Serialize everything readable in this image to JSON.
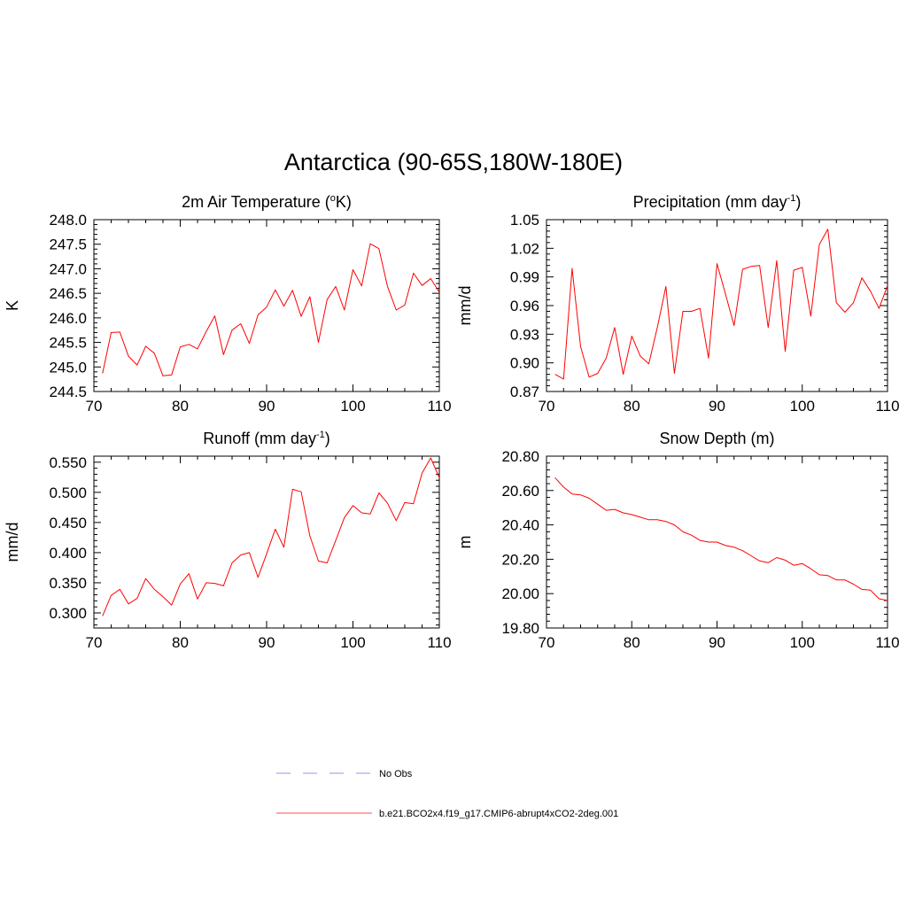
{
  "figure": {
    "title": "Antarctica (90-65S,180W-180E)"
  },
  "chart_data": [
    {
      "type": "line",
      "id": "temp",
      "title": "2m Air Temperature (",
      "title_sup": "o",
      "title_tail": "K)",
      "ylabel": "K",
      "xlabel": "",
      "xlim": [
        70,
        110
      ],
      "ylim": [
        244.5,
        248.0
      ],
      "xticks": [
        "70",
        "80",
        "90",
        "100",
        "110"
      ],
      "yticks": [
        "244.5",
        "245.0",
        "245.5",
        "246.0",
        "246.5",
        "247.0",
        "247.5",
        "248.0"
      ],
      "color": "#ff0000",
      "x": [
        71,
        72,
        73,
        74,
        75,
        76,
        77,
        78,
        79,
        80,
        81,
        82,
        83,
        84,
        85,
        86,
        87,
        88,
        89,
        90,
        91,
        92,
        93,
        94,
        95,
        96,
        97,
        98,
        99,
        100,
        101,
        102,
        103,
        104,
        105,
        106,
        107,
        108,
        109,
        110
      ],
      "values": [
        244.87,
        245.7,
        245.71,
        245.22,
        245.04,
        245.42,
        245.28,
        244.82,
        244.84,
        245.41,
        245.46,
        245.37,
        245.72,
        246.04,
        245.25,
        245.75,
        245.88,
        245.48,
        246.06,
        246.22,
        246.57,
        246.24,
        246.56,
        246.03,
        246.43,
        245.5,
        246.37,
        246.64,
        246.16,
        246.98,
        246.65,
        247.51,
        247.41,
        246.64,
        246.16,
        246.26,
        246.91,
        246.66,
        246.8,
        246.52
      ]
    },
    {
      "type": "line",
      "id": "precip",
      "title": "Precipitation (mm day",
      "title_sup": "-1",
      "title_tail": ")",
      "ylabel": "mm/d",
      "xlabel": "",
      "xlim": [
        70,
        110
      ],
      "ylim": [
        0.87,
        1.05
      ],
      "xticks": [
        "70",
        "80",
        "90",
        "100",
        "110"
      ],
      "yticks": [
        "0.87",
        "0.90",
        "0.93",
        "0.96",
        "0.99",
        "1.02",
        "1.05"
      ],
      "color": "#ff0000",
      "x": [
        71,
        72,
        73,
        74,
        75,
        76,
        77,
        78,
        79,
        80,
        81,
        82,
        83,
        84,
        85,
        86,
        87,
        88,
        89,
        90,
        91,
        92,
        93,
        94,
        95,
        96,
        97,
        98,
        99,
        100,
        101,
        102,
        103,
        104,
        105,
        106,
        107,
        108,
        109,
        110
      ],
      "values": [
        0.888,
        0.883,
        0.999,
        0.917,
        0.885,
        0.889,
        0.905,
        0.937,
        0.888,
        0.928,
        0.907,
        0.899,
        0.937,
        0.98,
        0.889,
        0.954,
        0.954,
        0.957,
        0.905,
        1.004,
        0.972,
        0.939,
        0.998,
        1.001,
        1.002,
        0.937,
        1.007,
        0.912,
        0.997,
        1.0,
        0.949,
        1.024,
        1.04,
        0.963,
        0.953,
        0.963,
        0.989,
        0.975,
        0.957,
        0.981
      ]
    },
    {
      "type": "line",
      "id": "runoff",
      "title": "Runoff (mm day",
      "title_sup": "-1",
      "title_tail": ")",
      "ylabel": "mm/d",
      "xlabel": "",
      "xlim": [
        70,
        110
      ],
      "ylim": [
        0.275,
        0.56
      ],
      "xticks": [
        "70",
        "80",
        "90",
        "100",
        "110"
      ],
      "yticks": [
        "0.300",
        "0.350",
        "0.400",
        "0.450",
        "0.500",
        "0.550"
      ],
      "color": "#ff0000",
      "x": [
        71,
        72,
        73,
        74,
        75,
        76,
        77,
        78,
        79,
        80,
        81,
        82,
        83,
        84,
        85,
        86,
        87,
        88,
        89,
        90,
        91,
        92,
        93,
        94,
        95,
        96,
        97,
        98,
        99,
        100,
        101,
        102,
        103,
        104,
        105,
        106,
        107,
        108,
        109,
        110
      ],
      "values": [
        0.295,
        0.329,
        0.339,
        0.315,
        0.324,
        0.357,
        0.339,
        0.327,
        0.313,
        0.348,
        0.365,
        0.323,
        0.35,
        0.349,
        0.345,
        0.383,
        0.396,
        0.4,
        0.359,
        0.398,
        0.439,
        0.409,
        0.505,
        0.501,
        0.428,
        0.386,
        0.383,
        0.42,
        0.458,
        0.478,
        0.466,
        0.464,
        0.499,
        0.482,
        0.453,
        0.483,
        0.481,
        0.532,
        0.557,
        0.524
      ]
    },
    {
      "type": "line",
      "id": "snow",
      "title": "Snow Depth (m)",
      "title_sup": "",
      "title_tail": "",
      "ylabel": "m",
      "xlabel": "",
      "xlim": [
        70,
        110
      ],
      "ylim": [
        19.8,
        20.8
      ],
      "xticks": [
        "70",
        "80",
        "90",
        "100",
        "110"
      ],
      "yticks": [
        "19.80",
        "20.00",
        "20.20",
        "20.40",
        "20.60",
        "20.80"
      ],
      "color": "#ff0000",
      "x": [
        71,
        72,
        73,
        74,
        75,
        76,
        77,
        78,
        79,
        80,
        81,
        82,
        83,
        84,
        85,
        86,
        87,
        88,
        89,
        90,
        91,
        92,
        93,
        94,
        95,
        96,
        97,
        98,
        99,
        100,
        101,
        102,
        103,
        104,
        105,
        106,
        107,
        108,
        109,
        110
      ],
      "values": [
        20.675,
        20.62,
        20.58,
        20.575,
        20.555,
        20.52,
        20.485,
        20.49,
        20.47,
        20.46,
        20.445,
        20.43,
        20.43,
        20.42,
        20.4,
        20.36,
        20.34,
        20.31,
        20.3,
        20.3,
        20.28,
        20.27,
        20.25,
        20.22,
        20.19,
        20.18,
        20.21,
        20.195,
        20.165,
        20.175,
        20.145,
        20.11,
        20.105,
        20.08,
        20.08,
        20.055,
        20.025,
        20.02,
        19.97,
        19.96
      ]
    }
  ],
  "legend": {
    "items": [
      {
        "label": "No Obs",
        "color": "#aaaaee",
        "style": "dashed"
      },
      {
        "label": "b.e21.BCO2x4.f19_g17.CMIP6-abrupt4xCO2-2deg.001",
        "color": "#ff6f6f",
        "style": "solid"
      }
    ]
  }
}
